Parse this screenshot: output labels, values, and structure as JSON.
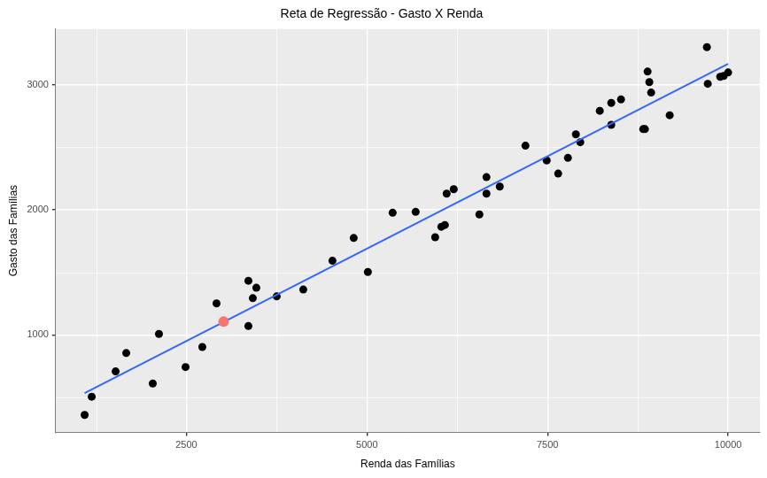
{
  "chart_data": {
    "type": "scatter",
    "title": "Reta de Regressão - Gasto X Renda",
    "x_label": "Renda das Famílias",
    "y_label": "Gasto das Famílias",
    "xlim": [
      690,
      10440
    ],
    "ylim": [
      220,
      3445
    ],
    "xticks": [
      2500,
      5000,
      7500,
      10000
    ],
    "yticks": [
      1000,
      2000,
      3000
    ],
    "grid": true,
    "series": [
      {
        "type": "scatter",
        "color": "#000000",
        "marker": "circle",
        "x": [
          1091,
          1189,
          1520,
          1667,
          2034,
          2120,
          2488,
          2720,
          2917,
          3358,
          3419,
          3468,
          3358,
          3750,
          4118,
          4522,
          4816,
          5012,
          5355,
          5674,
          5944,
          6029,
          6078,
          6103,
          6201,
          6556,
          6654,
          6654,
          6838,
          7194,
          7488,
          7647,
          7782,
          7892,
          7953,
          8223,
          8382,
          8382,
          8517,
          8824,
          8848,
          8885,
          8909,
          8934,
          9191,
          9706,
          9718,
          9890,
          9939,
          10000
        ],
        "values": [
          359,
          505,
          707,
          854,
          610,
          1007,
          742,
          902,
          1251,
          1432,
          1293,
          1376,
          1070,
          1307,
          1362,
          1592,
          1774,
          1502,
          1976,
          1983,
          1780,
          1864,
          1878,
          2129,
          2164,
          1962,
          2261,
          2129,
          2185,
          2512,
          2394,
          2289,
          2415,
          2603,
          2540,
          2791,
          2854,
          2679,
          2882,
          2645,
          2645,
          3105,
          3021,
          2937,
          2756,
          3300,
          3007,
          3063,
          3070,
          3098
        ]
      },
      {
        "type": "line",
        "color": "#3366ff",
        "line_style": "solid",
        "x": [
          1090,
          10000
        ],
        "values": [
          533,
          3167
        ]
      },
      {
        "type": "scatter",
        "color": "#f8766d",
        "marker": "circle",
        "x": [
          3015
        ],
        "values": [
          1105
        ]
      }
    ]
  }
}
